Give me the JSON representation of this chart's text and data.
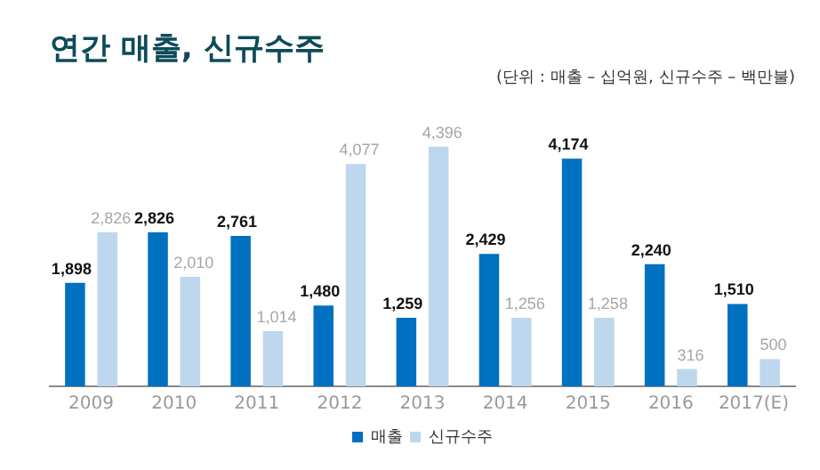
{
  "chart_data": {
    "type": "bar",
    "title": "연간 매출, 신규수주",
    "subtitle": "(단위 : 매출 – 십억원, 신규수주 – 백만불)",
    "categories": [
      "2009",
      "2010",
      "2011",
      "2012",
      "2013",
      "2014",
      "2015",
      "2016",
      "2017(E)"
    ],
    "series": [
      {
        "name": "매출",
        "color": "#0070c0",
        "values": [
          1898,
          2826,
          2761,
          1480,
          1259,
          2429,
          4174,
          2240,
          1510
        ],
        "value_labels": [
          "1,898",
          "2,826",
          "2,761",
          "1,480",
          "1,259",
          "2,429",
          "4,174",
          "2,240",
          "1,510"
        ]
      },
      {
        "name": "신규수주",
        "color": "#bdd7ee",
        "values": [
          2826,
          2010,
          1014,
          4077,
          4396,
          1256,
          1258,
          316,
          500
        ],
        "value_labels": [
          "2,826",
          "2,010",
          "1,014",
          "4,077",
          "4,396",
          "1,256",
          "1,258",
          "316",
          "500"
        ]
      }
    ],
    "grid": false,
    "legend": "bottom"
  }
}
